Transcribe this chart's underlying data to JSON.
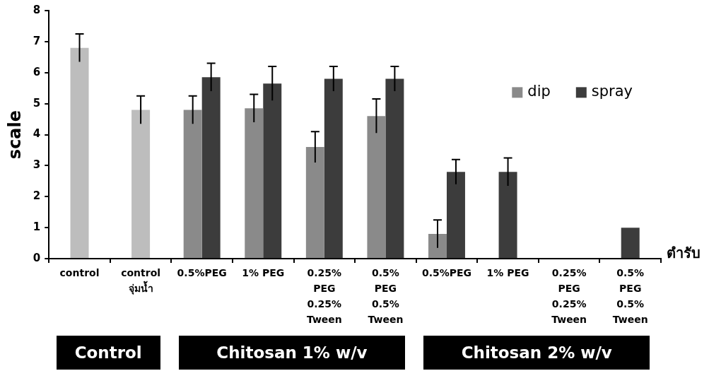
{
  "chart_data": {
    "type": "bar",
    "xlabel": "ตำรับ",
    "ylabel": "scale",
    "categories": [
      "control",
      "control จุ่มน้ำ",
      "0.5%PEG",
      "1% PEG",
      "0.25% PEG 0.25% Tween",
      "0.5% PEG 0.5% Tween",
      "0.5%PEG",
      "1% PEG",
      "0.25% PEG 0.25% Tween",
      "0.5% PEG 0.5% Tween"
    ],
    "series": [
      {
        "color": "#bdbdbd",
        "values": [
          6.8,
          4.8,
          null,
          null,
          null,
          null,
          null,
          null,
          null,
          null
        ],
        "errors": [
          0.45,
          0.45,
          null,
          null,
          null,
          null,
          null,
          null,
          null,
          null
        ]
      },
      {
        "name": "dip",
        "color": "#8a8a8a",
        "values": [
          null,
          null,
          4.8,
          4.85,
          3.6,
          4.6,
          0.8,
          null,
          null,
          null
        ],
        "errors": [
          null,
          null,
          0.45,
          0.45,
          0.5,
          0.55,
          0.45,
          null,
          null,
          null
        ]
      },
      {
        "name": "spray",
        "color": "#3c3c3c",
        "values": [
          null,
          null,
          5.85,
          5.65,
          5.8,
          5.8,
          2.8,
          2.8,
          null,
          1.0
        ],
        "errors": [
          null,
          null,
          0.45,
          0.55,
          0.4,
          0.4,
          0.4,
          0.45,
          null,
          null
        ]
      }
    ],
    "ylim": [
      0,
      8
    ],
    "yticks": [
      0,
      1,
      2,
      3,
      4,
      5,
      6,
      7,
      8
    ],
    "legend": "top right",
    "annotations": [
      "Control",
      "Chitosan 1% w/v",
      "Chitosan 2% w/v"
    ]
  }
}
